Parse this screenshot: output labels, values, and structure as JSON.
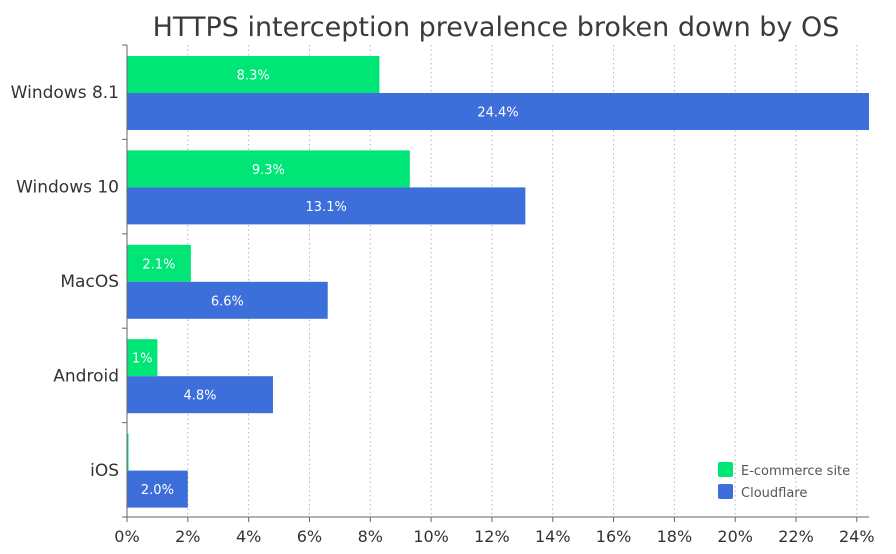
{
  "chart_data": {
    "type": "bar",
    "orientation": "horizontal",
    "title": "HTTPS interception prevalence broken down by OS",
    "xlabel": "",
    "ylabel": "",
    "categories": [
      "Windows 8.1",
      "Windows 10",
      "MacOS",
      "Android",
      "iOS"
    ],
    "series": [
      {
        "name": "E-commerce site",
        "color": "#00e676",
        "values": [
          8.3,
          9.3,
          2.1,
          1.0,
          0.05
        ],
        "labels": [
          "8.3%",
          "9.3%",
          "2.1%",
          "1%",
          ""
        ]
      },
      {
        "name": "Cloudflare",
        "color": "#3c6fd9",
        "values": [
          24.4,
          13.1,
          6.6,
          4.8,
          2.0
        ],
        "labels": [
          "24.4%",
          "13.1%",
          "6.6%",
          "4.8%",
          "2.0%"
        ]
      }
    ],
    "xlim": [
      0,
      24.4
    ],
    "xticks": [
      0,
      2,
      4,
      6,
      8,
      10,
      12,
      14,
      16,
      18,
      20,
      22,
      24
    ],
    "xtick_labels": [
      "0%",
      "2%",
      "4%",
      "6%",
      "8%",
      "10%",
      "12%",
      "14%",
      "16%",
      "18%",
      "20%",
      "22%",
      "24%"
    ],
    "grid": true,
    "legend_position": "bottom-right"
  }
}
